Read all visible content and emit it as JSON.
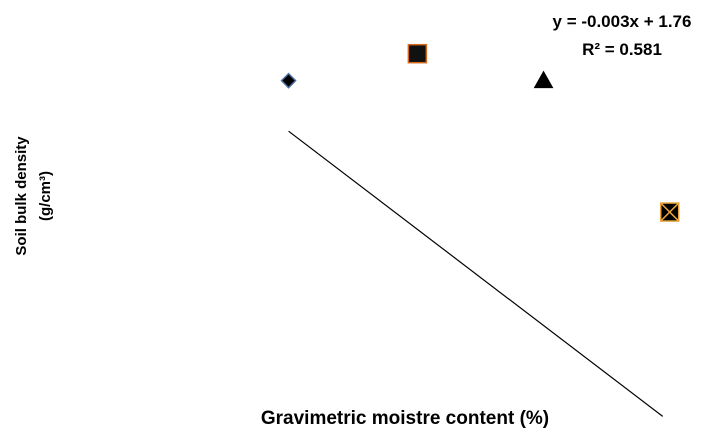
{
  "chart_data": {
    "type": "scatter",
    "xlabel": "Gravimetric moistre content (%)",
    "ylabel_line1": "Soil bulk density",
    "ylabel_line2": "(g/cm³)",
    "trendline": {
      "equation": "y = -0.003x + 1.76",
      "r_squared": "R² = 0.581",
      "slope": -0.003,
      "intercept": 1.76
    },
    "points": [
      {
        "x": 55,
        "y": 1.67,
        "marker": "diamond",
        "fill": "#000000",
        "stroke": "#4a6fa5"
      },
      {
        "x": 104,
        "y": 1.71,
        "marker": "square",
        "fill": "#111111",
        "stroke": "#d2691e"
      },
      {
        "x": 152,
        "y": 1.67,
        "marker": "triangle",
        "fill": "#000000",
        "stroke": "#000000"
      },
      {
        "x": 200,
        "y": 1.475,
        "marker": "square-x",
        "fill": "#000000",
        "stroke": "#e6a23c"
      }
    ],
    "xlim": [
      0,
      210
    ],
    "ylim": [
      1.3,
      1.76
    ],
    "grid": false,
    "legend": "none"
  }
}
